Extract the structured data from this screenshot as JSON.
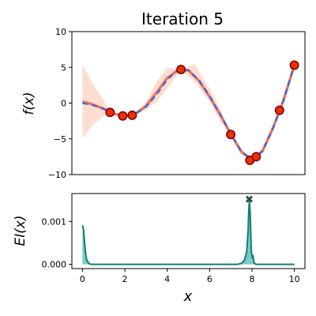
{
  "chart_data": [
    {
      "type": "line",
      "title": "Iteration 5",
      "ylabel": "f(x)",
      "xlabel": "",
      "xlim": [
        -0.5,
        10.5
      ],
      "ylim": [
        -10,
        10
      ],
      "yticks": [
        -10,
        -5,
        0,
        5,
        10
      ],
      "ytick_labels": [
        "−10",
        "−5",
        "0",
        "5",
        "10"
      ],
      "grid": false,
      "colors": {
        "true_function": "#4169e1",
        "mean": "#f07050",
        "band": "#ffd9cc",
        "points_fill": "#e8300a",
        "points_edge": "#8b0000"
      },
      "series": [
        {
          "kind": "true-function-dashed",
          "x": [
            0,
            0.5,
            1,
            1.5,
            2,
            2.5,
            3,
            3.5,
            4,
            4.5,
            5,
            5.5,
            6,
            6.5,
            7,
            7.5,
            8,
            8.5,
            9,
            9.5,
            10
          ],
          "y": [
            0.0,
            -0.3,
            -0.8,
            -1.5,
            -1.8,
            -1.5,
            -0.5,
            1.2,
            3.3,
            4.6,
            4.6,
            3.2,
            1.0,
            -1.6,
            -4.3,
            -6.8,
            -7.9,
            -6.7,
            -3.5,
            0.5,
            5.3
          ]
        },
        {
          "kind": "posterior-mean",
          "x": [
            0,
            0.5,
            1,
            1.5,
            2,
            2.5,
            3,
            3.5,
            4,
            4.5,
            5,
            5.5,
            6,
            6.5,
            7,
            7.5,
            8,
            8.5,
            9,
            9.5,
            10
          ],
          "y": [
            0.2,
            -0.2,
            -0.8,
            -1.5,
            -1.8,
            -1.5,
            -0.4,
            1.5,
            3.5,
            4.6,
            4.6,
            3.1,
            0.9,
            -1.6,
            -4.3,
            -6.8,
            -7.9,
            -6.7,
            -3.4,
            0.5,
            5.3
          ]
        },
        {
          "kind": "confidence-band",
          "x": [
            0,
            0.5,
            1,
            1.3,
            1.9,
            2.35,
            3,
            3.5,
            4,
            4.65,
            5.3,
            6,
            6.5,
            7,
            7.5,
            7.9,
            8.2,
            8.6,
            9.3,
            10
          ],
          "lower": [
            -5.0,
            -3.0,
            -1.8,
            -1.3,
            -1.8,
            -1.7,
            -1.0,
            0.2,
            2.0,
            4.6,
            3.0,
            0.2,
            -2.5,
            -4.4,
            -7.2,
            -8.0,
            -7.6,
            -6.4,
            -1.0,
            5.3
          ],
          "upper": [
            5.4,
            2.6,
            0.4,
            -1.3,
            -1.8,
            -1.7,
            0.2,
            3.0,
            5.0,
            4.6,
            5.5,
            2.0,
            -0.8,
            -4.2,
            -6.4,
            -7.9,
            -7.4,
            -5.6,
            -0.8,
            5.3
          ]
        },
        {
          "kind": "observations",
          "x": [
            1.3,
            1.9,
            2.35,
            4.65,
            7.0,
            7.9,
            8.2,
            9.3,
            10.0
          ],
          "y": [
            -1.3,
            -1.8,
            -1.7,
            4.7,
            -4.4,
            -8.0,
            -7.5,
            -1.0,
            5.3
          ]
        }
      ]
    },
    {
      "type": "area",
      "xlabel": "x",
      "ylabel": "EI(x)",
      "xlim": [
        -0.5,
        10.5
      ],
      "ylim": [
        -0.0001,
        0.00165
      ],
      "xticks": [
        0,
        2,
        4,
        6,
        8,
        10
      ],
      "xtick_labels": [
        "0",
        "2",
        "4",
        "6",
        "8",
        "10"
      ],
      "yticks": [
        0.0,
        0.001
      ],
      "ytick_labels": [
        "0.000",
        "0.001"
      ],
      "grid": false,
      "colors": {
        "line": "#0f7f7a",
        "fill": "#7fc9c3",
        "marker": "#2f4f4f"
      },
      "x": [
        0,
        0.05,
        0.1,
        0.15,
        0.2,
        0.3,
        0.4,
        1,
        2,
        4,
        6,
        7.3,
        7.5,
        7.65,
        7.75,
        7.82,
        7.85,
        7.88,
        7.92,
        7.97,
        8.02,
        8.05,
        8.1,
        8.2,
        9,
        10
      ],
      "y": [
        0.00091,
        0.0008,
        0.0005,
        0.00025,
        0.0001,
        2e-05,
        0.0,
        0.0,
        0.0,
        0.0,
        0.0,
        0.0,
        2e-05,
        0.0001,
        0.0003,
        0.0008,
        0.00125,
        0.00148,
        0.00115,
        0.0003,
        0.00015,
        0.0002,
        3e-05,
        0.0,
        0.0,
        0.0
      ],
      "max_point": {
        "x": 7.87,
        "y": 0.00152
      }
    }
  ]
}
